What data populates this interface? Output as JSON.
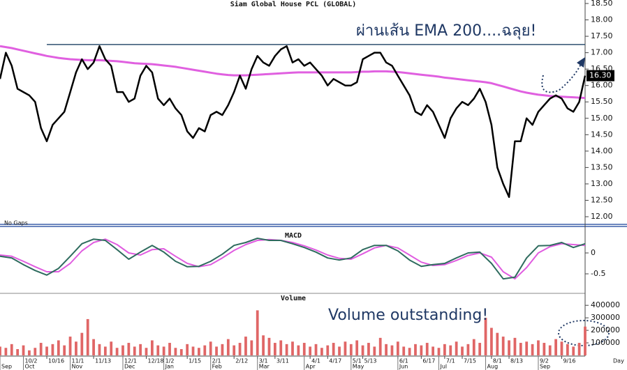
{
  "chart_data": [
    {
      "type": "line",
      "title": "Siam Global House PCL (GLOBAL)",
      "note": "No Gaps",
      "annotation": "ผ่านเส้น EMA 200....ฉลุย!",
      "xlim": [
        0,
        100
      ],
      "ylim": [
        12.0,
        18.5
      ],
      "yticks": [
        {
          "value": 12,
          "label": "12.00"
        },
        {
          "value": 12.5,
          "label": "12.50"
        },
        {
          "value": 13,
          "label": "13.00"
        },
        {
          "value": 13.5,
          "label": "13.50"
        },
        {
          "value": 14,
          "label": "14.00"
        },
        {
          "value": 14.5,
          "label": "14.50"
        },
        {
          "value": 15,
          "label": "15.00"
        },
        {
          "value": 15.5,
          "label": "15.50"
        },
        {
          "value": 16,
          "label": "16.00"
        },
        {
          "value": 16.5,
          "label": "16.50"
        },
        {
          "value": 17,
          "label": "17.00"
        },
        {
          "value": 17.5,
          "label": "17.50"
        },
        {
          "value": 18,
          "label": "18.00"
        },
        {
          "value": 18.5,
          "label": "18.50"
        }
      ],
      "last_value_label": "16.30",
      "reference_line": {
        "value": 17.25,
        "x_start": 8,
        "color": "#2f4f6f"
      },
      "series": [
        {
          "name": "Price",
          "color": "#000000",
          "width": 2.5,
          "values": [
            16.2,
            17.0,
            16.6,
            15.9,
            15.8,
            15.7,
            15.5,
            14.7,
            14.3,
            14.8,
            15.0,
            15.2,
            15.8,
            16.4,
            16.8,
            16.5,
            16.7,
            17.2,
            16.8,
            16.6,
            15.8,
            15.8,
            15.5,
            15.6,
            16.3,
            16.6,
            16.4,
            15.6,
            15.4,
            15.6,
            15.3,
            15.1,
            14.6,
            14.4,
            14.7,
            14.6,
            15.1,
            15.2,
            15.1,
            15.4,
            15.8,
            16.3,
            15.9,
            16.5,
            16.9,
            16.7,
            16.6,
            16.9,
            17.1,
            17.2,
            16.7,
            16.8,
            16.6,
            16.7,
            16.5,
            16.3,
            16.0,
            16.2,
            16.1,
            16.0,
            16.0,
            16.1,
            16.8,
            16.9,
            17.0,
            17.0,
            16.7,
            16.6,
            16.3,
            16.0,
            15.7,
            15.2,
            15.1,
            15.4,
            15.2,
            14.8,
            14.4,
            15.0,
            15.3,
            15.5,
            15.4,
            15.6,
            15.9,
            15.5,
            14.8,
            13.5,
            13.0,
            12.6,
            14.3,
            14.3,
            15.0,
            14.8,
            15.2,
            15.4,
            15.6,
            15.7,
            15.6,
            15.3,
            15.2,
            15.5,
            16.3
          ]
        },
        {
          "name": "EMA 200",
          "color": "#e060e0",
          "width": 3,
          "values": [
            17.2,
            17.17,
            17.14,
            17.1,
            17.06,
            17.02,
            16.98,
            16.94,
            16.9,
            16.87,
            16.84,
            16.82,
            16.8,
            16.79,
            16.78,
            16.77,
            16.77,
            16.77,
            16.76,
            16.75,
            16.74,
            16.72,
            16.7,
            16.68,
            16.67,
            16.66,
            16.65,
            16.63,
            16.61,
            16.59,
            16.57,
            16.54,
            16.51,
            16.48,
            16.45,
            16.42,
            16.39,
            16.36,
            16.34,
            16.32,
            16.31,
            16.31,
            16.31,
            16.32,
            16.33,
            16.34,
            16.35,
            16.36,
            16.37,
            16.38,
            16.39,
            16.4,
            16.4,
            16.4,
            16.4,
            16.4,
            16.4,
            16.4,
            16.4,
            16.4,
            16.4,
            16.41,
            16.42,
            16.42,
            16.43,
            16.43,
            16.43,
            16.42,
            16.41,
            16.39,
            16.37,
            16.35,
            16.33,
            16.31,
            16.29,
            16.27,
            16.24,
            16.22,
            16.2,
            16.18,
            16.16,
            16.14,
            16.12,
            16.1,
            16.07,
            16.02,
            15.97,
            15.92,
            15.87,
            15.82,
            15.78,
            15.75,
            15.72,
            15.7,
            15.68,
            15.67,
            15.66,
            15.65,
            15.64,
            15.63,
            15.62
          ]
        }
      ]
    },
    {
      "type": "line",
      "title": "MACD",
      "xlim": [
        0,
        50
      ],
      "ylim": [
        -0.95,
        0.55
      ],
      "yticks": [
        -0.5,
        0
      ],
      "series": [
        {
          "name": "MACD",
          "color": "#2e6b5e",
          "width": 2,
          "values": [
            -0.08,
            -0.12,
            -0.28,
            -0.42,
            -0.53,
            -0.37,
            -0.08,
            0.22,
            0.33,
            0.3,
            0.08,
            -0.15,
            0.02,
            0.18,
            0.02,
            -0.2,
            -0.33,
            -0.32,
            -0.2,
            -0.03,
            0.18,
            0.25,
            0.35,
            0.3,
            0.3,
            0.22,
            0.13,
            0.02,
            -0.12,
            -0.17,
            -0.12,
            0.08,
            0.18,
            0.18,
            0.05,
            -0.17,
            -0.32,
            -0.28,
            -0.25,
            -0.12,
            0,
            0.02,
            -0.25,
            -0.62,
            -0.58,
            -0.12,
            0.17,
            0.18,
            0.25,
            0.13,
            0.22
          ]
        },
        {
          "name": "Signal",
          "color": "#e05ce0",
          "width": 2,
          "values": [
            -0.05,
            -0.08,
            -0.2,
            -0.33,
            -0.45,
            -0.45,
            -0.25,
            0.05,
            0.25,
            0.33,
            0.2,
            0,
            -0.05,
            0.08,
            0.1,
            -0.08,
            -0.25,
            -0.33,
            -0.28,
            -0.12,
            0.06,
            0.2,
            0.3,
            0.32,
            0.3,
            0.25,
            0.17,
            0.07,
            -0.05,
            -0.13,
            -0.15,
            -0.02,
            0.12,
            0.18,
            0.12,
            -0.05,
            -0.22,
            -0.3,
            -0.28,
            -0.18,
            -0.06,
            0,
            -0.1,
            -0.45,
            -0.62,
            -0.35,
            0,
            0.15,
            0.22,
            0.2,
            0.18
          ]
        }
      ]
    },
    {
      "type": "bar",
      "title": "Volume",
      "annotation": "Volume outstanding!",
      "color": "#e06666",
      "xlim": [
        0,
        100
      ],
      "ylim": [
        0,
        440000
      ],
      "yticks": [
        100000,
        200000,
        300000,
        400000
      ],
      "x_label": "Day",
      "xticks": [
        {
          "value": 4,
          "label": "10/2"
        },
        {
          "value": 8,
          "label": "10/16"
        },
        {
          "value": 12,
          "label": "11/1"
        },
        {
          "value": 16,
          "label": "11/13"
        },
        {
          "value": 21,
          "label": "12/1"
        },
        {
          "value": 25,
          "label": "12/18"
        },
        {
          "value": 28,
          "label": "1/2"
        },
        {
          "value": 32,
          "label": "1/15"
        },
        {
          "value": 36,
          "label": "2/1"
        },
        {
          "value": 40,
          "label": "2/12"
        },
        {
          "value": 44,
          "label": "3/1"
        },
        {
          "value": 47,
          "label": "3/11"
        },
        {
          "value": 53,
          "label": "4/1"
        },
        {
          "value": 56,
          "label": "4/17"
        },
        {
          "value": 60,
          "label": "5/1"
        },
        {
          "value": 62,
          "label": "5/13"
        },
        {
          "value": 68,
          "label": "6/1"
        },
        {
          "value": 72,
          "label": "6/17"
        },
        {
          "value": 76,
          "label": "7/1"
        },
        {
          "value": 79,
          "label": "7/15"
        },
        {
          "value": 84,
          "label": "8/1"
        },
        {
          "value": 87,
          "label": "8/13"
        },
        {
          "value": 92,
          "label": "9/2"
        },
        {
          "value": 96,
          "label": "9/16"
        }
      ],
      "xticks_months": [
        {
          "value": 0,
          "label": "Sep"
        },
        {
          "value": 4,
          "label": "Oct"
        },
        {
          "value": 12,
          "label": "Nov"
        },
        {
          "value": 21,
          "label": "Dec"
        },
        {
          "value": 28,
          "label": "Jan"
        },
        {
          "value": 36,
          "label": "Feb"
        },
        {
          "value": 44,
          "label": "Mar"
        },
        {
          "value": 52,
          "label": "Apr"
        },
        {
          "value": 60,
          "label": "May"
        },
        {
          "value": 68,
          "label": "Jun"
        },
        {
          "value": 75,
          "label": "Jul"
        },
        {
          "value": 83,
          "label": "Aug"
        },
        {
          "value": 92,
          "label": "Sep"
        }
      ],
      "values": [
        70000,
        60000,
        90000,
        50000,
        80000,
        40000,
        60000,
        100000,
        70000,
        90000,
        120000,
        80000,
        150000,
        110000,
        180000,
        290000,
        130000,
        90000,
        70000,
        110000,
        60000,
        80000,
        100000,
        70000,
        90000,
        60000,
        120000,
        80000,
        70000,
        100000,
        60000,
        50000,
        90000,
        70000,
        60000,
        80000,
        110000,
        70000,
        90000,
        130000,
        80000,
        100000,
        150000,
        120000,
        360000,
        160000,
        140000,
        100000,
        120000,
        90000,
        110000,
        80000,
        100000,
        70000,
        90000,
        60000,
        80000,
        100000,
        70000,
        110000,
        90000,
        120000,
        80000,
        100000,
        70000,
        140000,
        90000,
        80000,
        110000,
        70000,
        60000,
        90000,
        80000,
        100000,
        70000,
        60000,
        90000,
        80000,
        110000,
        70000,
        90000,
        130000,
        100000,
        300000,
        220000,
        180000,
        150000,
        120000,
        140000,
        100000,
        110000,
        90000,
        120000,
        100000,
        80000,
        130000,
        110000,
        90000,
        70000,
        100000,
        230000
      ]
    }
  ]
}
